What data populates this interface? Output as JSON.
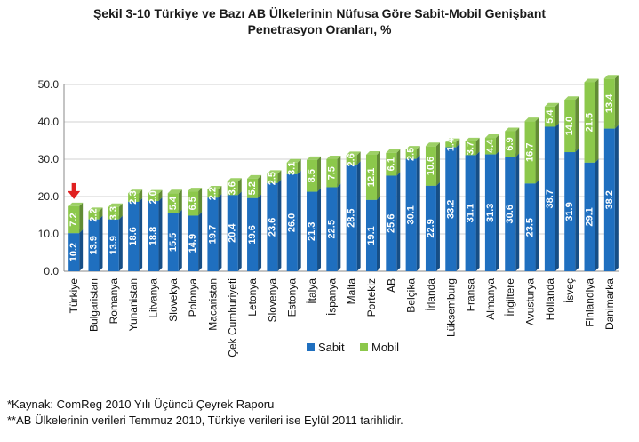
{
  "title_line1": "Şekil 3-10 Türkiye ve Bazı AB Ülkelerinin Nüfusa Göre Sabit-Mobil Genişbant",
  "title_line2": "Penetrasyon Oranları, %",
  "footnotes": [
    "*Kaynak: ComReg 2010 Yılı Üçüncü Çeyrek Raporu",
    "**AB Ülkelerinin verileri Temmuz 2010, Türkiye verileri ise Eylül 2011 tarihlidir."
  ],
  "chart_data": {
    "type": "bar",
    "stacked": true,
    "categories": [
      "Türkiye",
      "Bulgaristan",
      "Romanya",
      "Yunanistan",
      "Litvanya",
      "Slovekya",
      "Polonya",
      "Macaristan",
      "Çek Cumhuriyeti",
      "Letonya",
      "Slovenya",
      "Estonya",
      "İtalya",
      "İspanya",
      "Malta",
      "Portekiz",
      "AB",
      "Belçika",
      "İrlanda",
      "Lüksemburg",
      "Fransa",
      "Almanya",
      "İngiltere",
      "Avusturya",
      "Hollanda",
      "İsveç",
      "Finlandiya",
      "Danimarka"
    ],
    "series": [
      {
        "name": "Sabit",
        "color": "#1f6fbf",
        "values": [
          10.2,
          13.9,
          13.9,
          18.6,
          18.8,
          15.5,
          14.9,
          19.7,
          20.4,
          19.6,
          23.6,
          26.0,
          21.3,
          22.5,
          28.5,
          19.1,
          25.6,
          30.1,
          22.9,
          33.2,
          31.1,
          31.3,
          30.6,
          23.5,
          38.7,
          31.9,
          29.1,
          38.2
        ],
        "labels": [
          "10.2",
          "13.9",
          "13.9",
          "18.6",
          "18.8",
          "15.5",
          "14.9",
          "19.7",
          "20.4",
          "19.6",
          "23.6",
          "26.0",
          "21.3",
          "22.5",
          "28.5",
          "19.1",
          "25.6",
          "30.1",
          "22.9",
          "33.2",
          "31.1",
          "31.3",
          "30.6",
          "23.5",
          "38.7",
          "31.9",
          "29.1",
          "38.2"
        ]
      },
      {
        "name": "Mobil",
        "color": "#8cc84b",
        "values": [
          7.2,
          2.2,
          3.3,
          2.3,
          2.0,
          5.4,
          6.5,
          2.2,
          3.6,
          5.2,
          2.5,
          3.1,
          8.5,
          7.5,
          2.6,
          12.1,
          6.1,
          2.5,
          10.6,
          1.4,
          3.7,
          4.4,
          6.9,
          16.7,
          5.4,
          14.0,
          21.5,
          13.4
        ],
        "labels": [
          "7.2",
          "2.2",
          "3.3",
          "2.3",
          "2.0",
          "5.4",
          "6.5",
          "2.2",
          "3.6",
          "5.2",
          "2.5",
          "3.1",
          "8.5",
          "7.5",
          "2.6",
          "12.1",
          "6.1",
          "2.5",
          "10.6",
          "1.4",
          "3.7",
          "4.4",
          "6.9",
          "16.7",
          "5.4",
          "14.0",
          "21.5",
          "13.4"
        ]
      }
    ],
    "ylim": [
      0,
      50
    ],
    "yticks": [
      "0.0",
      "10.0",
      "20.0",
      "30.0",
      "40.0",
      "50.0"
    ],
    "grid": true,
    "legend_position": "bottom",
    "highlight_category": "Türkiye",
    "marker_color": "#e02020",
    "gridline_color": "#d0d0d0",
    "axis_color": "#888888"
  }
}
